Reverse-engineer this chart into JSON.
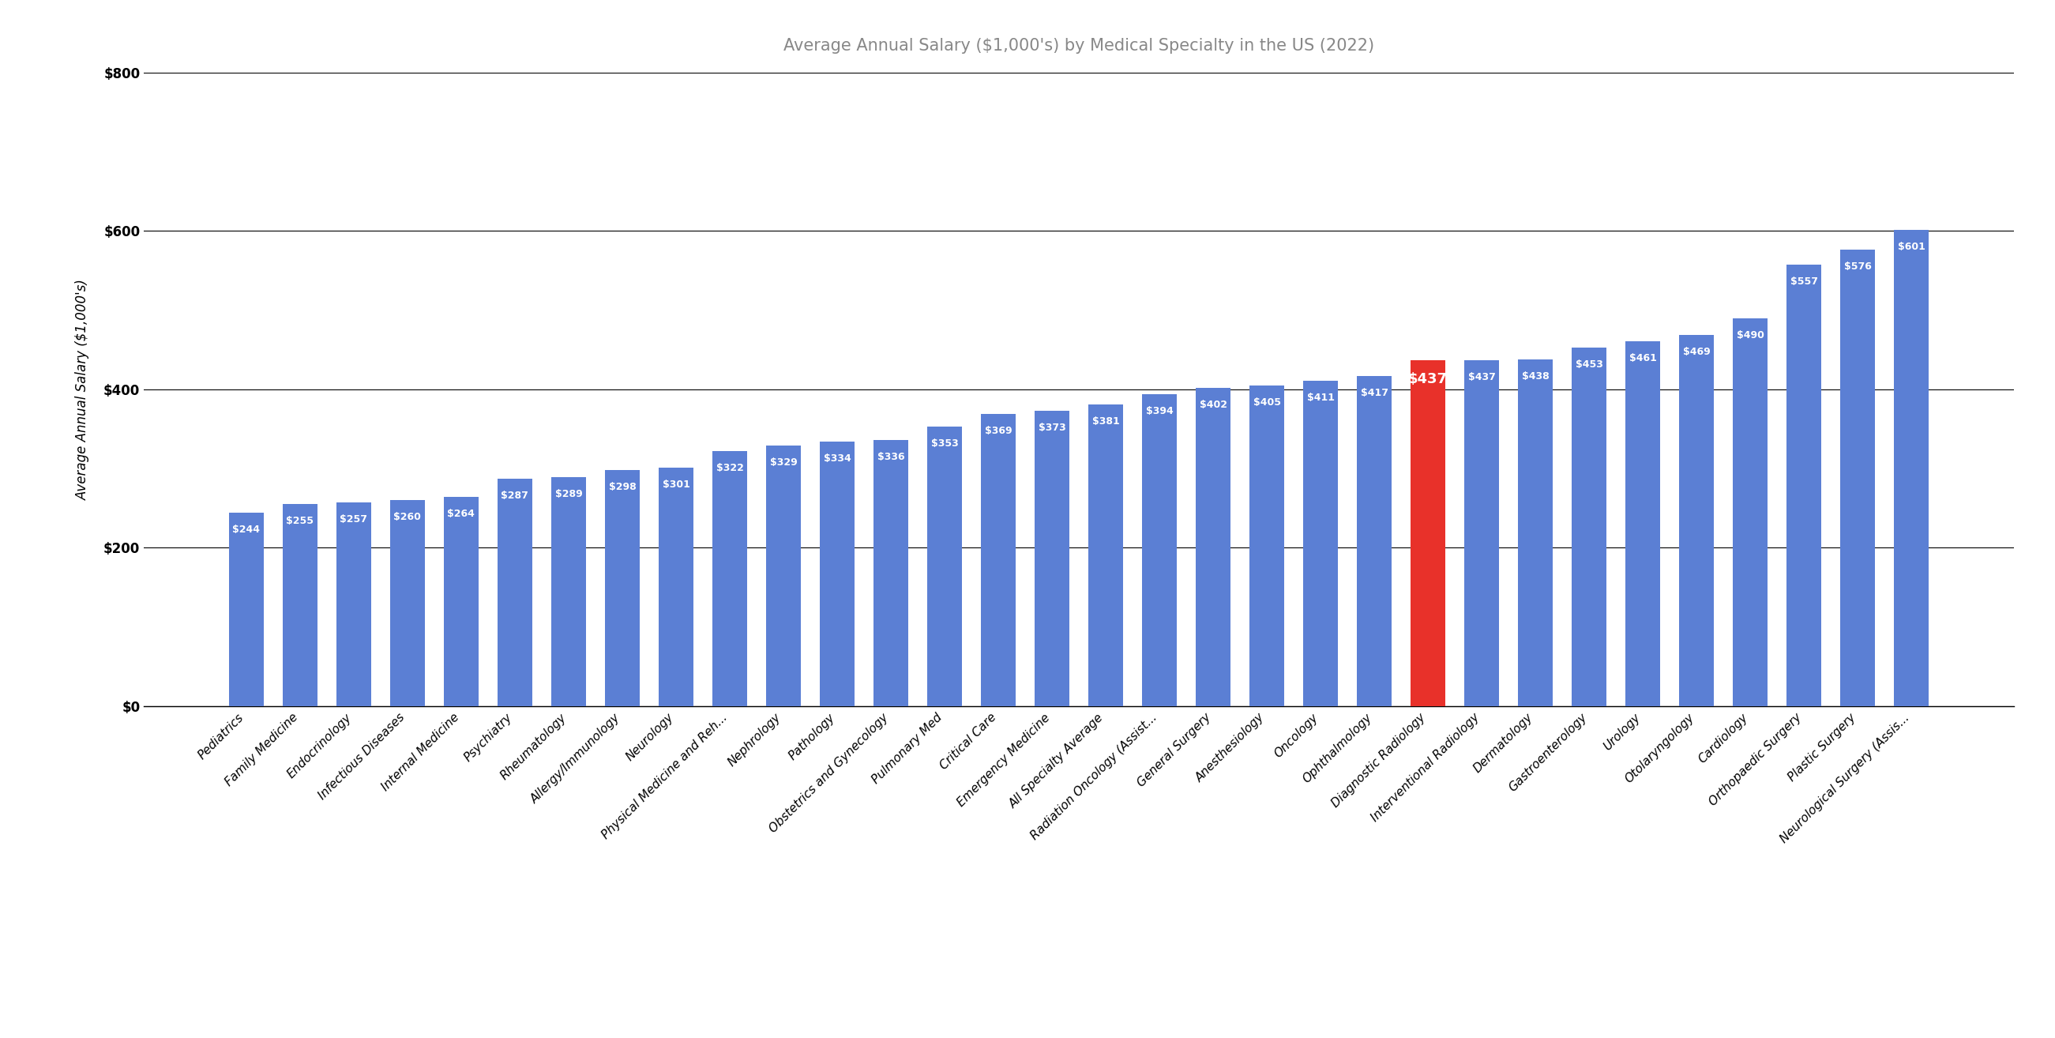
{
  "title": "Average Annual Salary ($1,000's) by Medical Specialty in the US (2022)",
  "ylabel": "Average Annual Salary ($1,000's)",
  "categories": [
    "Pediatrics",
    "Family Medicine",
    "Endocrinology",
    "Infectious Diseases",
    "Internal Medicine",
    "Psychiatry",
    "Rheumatology",
    "Allergy/Immunology",
    "Neurology",
    "Physical Medicine and Reh...",
    "Nephrology",
    "Pathology",
    "Obstetrics and Gynecology",
    "Pulmonary Med",
    "Critical Care",
    "Emergency Medicine",
    "All Specialty Average",
    "Radiation Oncology (Assist...",
    "General Surgery",
    "Anesthesiology",
    "Oncology",
    "Ophthalmology",
    "Diagnostic Radiology",
    "Interventional Radiology",
    "Dermatology",
    "Gastroenterology",
    "Urology",
    "Otolaryngology",
    "Cardiology",
    "Orthopaedic Surgery",
    "Plastic Surgery",
    "Neurological Surgery (Assis..."
  ],
  "values": [
    244,
    255,
    257,
    260,
    264,
    287,
    289,
    298,
    301,
    322,
    329,
    334,
    336,
    353,
    369,
    373,
    381,
    394,
    402,
    405,
    411,
    417,
    437,
    437,
    438,
    453,
    461,
    469,
    490,
    557,
    576,
    601
  ],
  "highlight_index": 22,
  "bar_color": "#5B7FD4",
  "highlight_color": "#E8312A",
  "label_color": "#FFFFFF",
  "background_color": "#FFFFFF",
  "ylim": [
    0,
    800
  ],
  "yticks": [
    0,
    200,
    400,
    600,
    800
  ],
  "ytick_labels": [
    "$0",
    "$200",
    "$400",
    "$600",
    "$800"
  ],
  "title_fontsize": 15,
  "label_fontsize": 9,
  "ylabel_fontsize": 12,
  "xtick_fontsize": 11,
  "ytick_fontsize": 12,
  "grid_color": "#000000",
  "grid_linewidth": 0.8,
  "bar_width": 0.65
}
